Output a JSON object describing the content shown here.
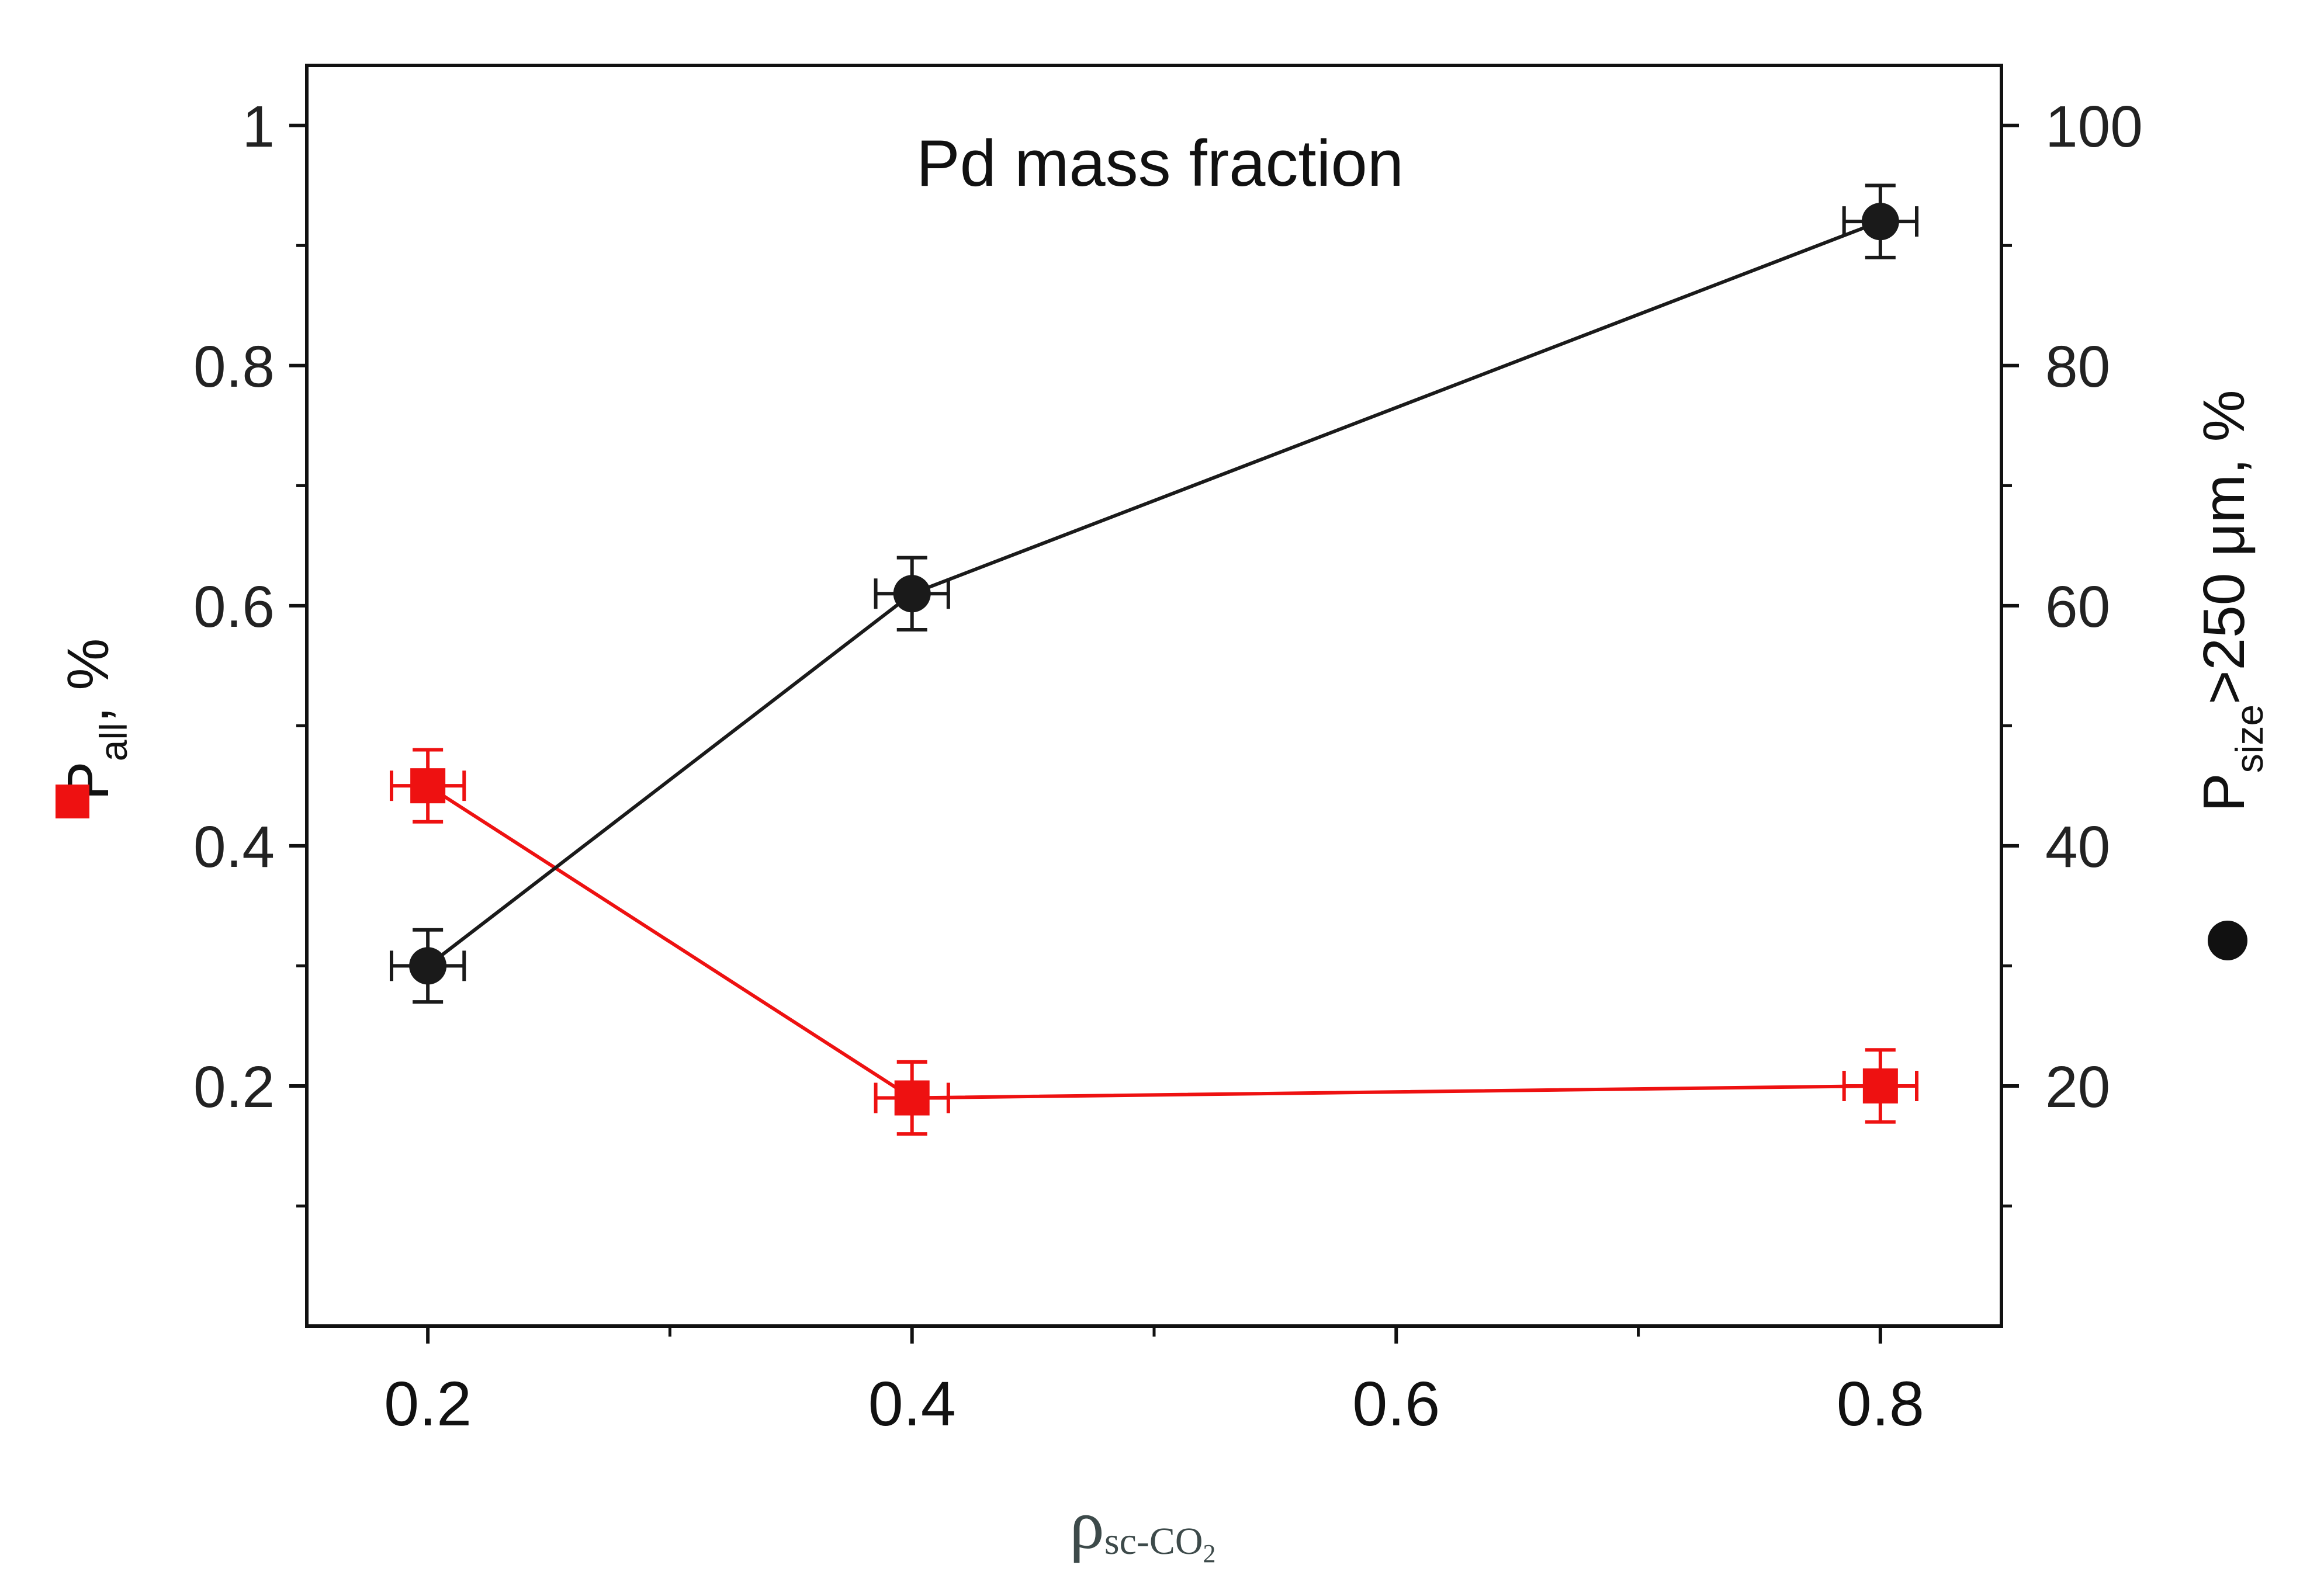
{
  "chart_data": {
    "type": "line",
    "title": "Pd mass fraction",
    "x_label": {
      "main": "ρ",
      "sub": "sc-CO",
      "sub2": "2"
    },
    "left_y_label": {
      "main": "P",
      "sub": "all",
      "suffix": ", %"
    },
    "right_y_label": {
      "main": "P",
      "sub": "size",
      "suffix": ">250 μm, %"
    },
    "x_ticks": [
      "0.2",
      "0.4",
      "0.6",
      "0.8"
    ],
    "x_minor_ticks": [
      0.3,
      0.5,
      0.7
    ],
    "xlim": [
      0.15,
      0.85
    ],
    "left_y_ticks": [
      "0.2",
      "0.4",
      "0.6",
      "0.8",
      "1"
    ],
    "left_ylim": [
      0,
      1.05
    ],
    "right_y_ticks": [
      "20",
      "40",
      "60",
      "80",
      "100"
    ],
    "right_ylim": [
      0,
      105
    ],
    "series": [
      {
        "name": "P_all",
        "axis": "left",
        "marker": "square",
        "color": "#ee1111",
        "x": [
          0.2,
          0.4,
          0.8
        ],
        "y": [
          0.45,
          0.19,
          0.2
        ],
        "x_err": [
          0.015,
          0.015,
          0.015
        ],
        "y_err": [
          0.03,
          0.03,
          0.03
        ]
      },
      {
        "name": "P_size>250 μm",
        "axis": "right",
        "marker": "circle",
        "color": "#1a1a1a",
        "x": [
          0.2,
          0.4,
          0.8
        ],
        "y": [
          30,
          61,
          92
        ],
        "x_err": [
          0.015,
          0.015,
          0.015
        ],
        "y_err": [
          3,
          3,
          3
        ]
      }
    ]
  }
}
